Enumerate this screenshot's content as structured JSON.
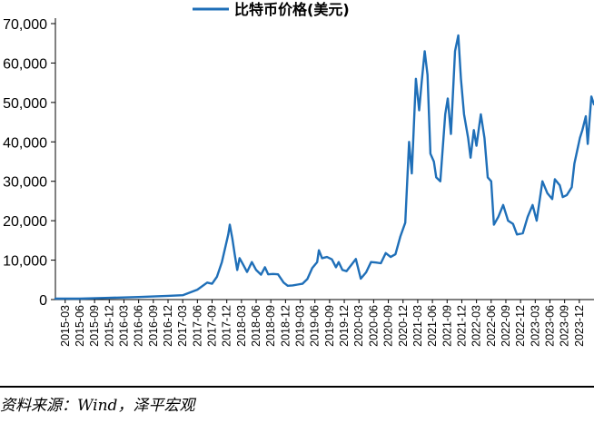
{
  "source_note": "资料来源：Wind，泽平宏观",
  "colors": {
    "series": "#1f6fb8",
    "axis": "#000000",
    "rule": "#000000"
  },
  "chart_data": {
    "type": "line",
    "legend_position": "top",
    "grid": false,
    "ylim": [
      0,
      70000
    ],
    "y_ticks": [
      0,
      10000,
      20000,
      30000,
      40000,
      50000,
      60000,
      70000
    ],
    "y_tick_labels": [
      "0",
      "10,000",
      "20,000",
      "30,000",
      "40,000",
      "50,000",
      "60,000",
      "70,000"
    ],
    "x_ticks": [
      "2015-03",
      "2015-06",
      "2015-09",
      "2015-12",
      "2016-03",
      "2016-06",
      "2016-09",
      "2016-12",
      "2017-03",
      "2017-06",
      "2017-09",
      "2017-12",
      "2018-03",
      "2018-06",
      "2018-09",
      "2018-12",
      "2019-03",
      "2019-06",
      "2019-09",
      "2019-12",
      "2020-03",
      "2020-06",
      "2020-09",
      "2020-12",
      "2021-03",
      "2021-06",
      "2021-09",
      "2021-12",
      "2022-03",
      "2022-06",
      "2022-09",
      "2022-12",
      "2023-03",
      "2023-06",
      "2023-09",
      "2023-12"
    ],
    "x_range": [
      "2015-01",
      "2024-03"
    ],
    "series": [
      {
        "name": "比特币价格(美元)",
        "points": [
          [
            "2015-01",
            250
          ],
          [
            "2015-06",
            240
          ],
          [
            "2015-12",
            430
          ],
          [
            "2016-06",
            650
          ],
          [
            "2016-12",
            950
          ],
          [
            "2017-03",
            1100
          ],
          [
            "2017-06",
            2500
          ],
          [
            "2017-08",
            4300
          ],
          [
            "2017-09",
            4000
          ],
          [
            "2017-10",
            5800
          ],
          [
            "2017-11",
            9500
          ],
          [
            "2017-12-10",
            16500
          ],
          [
            "2017-12-20",
            19000
          ],
          [
            "2018-01-05",
            15500
          ],
          [
            "2018-01-20",
            11500
          ],
          [
            "2018-02-05",
            7500
          ],
          [
            "2018-02-20",
            10500
          ],
          [
            "2018-03-10",
            9000
          ],
          [
            "2018-04-05",
            7000
          ],
          [
            "2018-05-05",
            9500
          ],
          [
            "2018-06-01",
            7500
          ],
          [
            "2018-07-01",
            6300
          ],
          [
            "2018-07-25",
            8200
          ],
          [
            "2018-08-15",
            6400
          ],
          [
            "2018-09-15",
            6500
          ],
          [
            "2018-10-15",
            6400
          ],
          [
            "2018-11-20",
            4300
          ],
          [
            "2018-12-15",
            3500
          ],
          [
            "2019-01-15",
            3600
          ],
          [
            "2019-02-15",
            3800
          ],
          [
            "2019-03-15",
            4000
          ],
          [
            "2019-04-15",
            5200
          ],
          [
            "2019-05-15",
            8000
          ],
          [
            "2019-06-15",
            9500
          ],
          [
            "2019-06-26",
            12500
          ],
          [
            "2019-07-15",
            10500
          ],
          [
            "2019-08-15",
            10800
          ],
          [
            "2019-09-15",
            10200
          ],
          [
            "2019-10-10",
            8200
          ],
          [
            "2019-10-27",
            9500
          ],
          [
            "2019-11-20",
            7500
          ],
          [
            "2019-12-15",
            7200
          ],
          [
            "2020-01-15",
            8800
          ],
          [
            "2020-02-12",
            10300
          ],
          [
            "2020-03-12",
            5300
          ],
          [
            "2020-04-15",
            6900
          ],
          [
            "2020-05-15",
            9500
          ],
          [
            "2020-06-15",
            9400
          ],
          [
            "2020-07-15",
            9200
          ],
          [
            "2020-08-15",
            11800
          ],
          [
            "2020-09-15",
            10800
          ],
          [
            "2020-10-15",
            11500
          ],
          [
            "2020-11-15",
            16000
          ],
          [
            "2020-12-15",
            19500
          ],
          [
            "2021-01-08",
            40000
          ],
          [
            "2021-01-25",
            32000
          ],
          [
            "2021-02-20",
            56000
          ],
          [
            "2021-03-10",
            48000
          ],
          [
            "2021-03-25",
            55000
          ],
          [
            "2021-04-14",
            63000
          ],
          [
            "2021-05-01",
            57000
          ],
          [
            "2021-05-19",
            37000
          ],
          [
            "2021-06-10",
            35000
          ],
          [
            "2021-06-25",
            31000
          ],
          [
            "2021-07-20",
            30000
          ],
          [
            "2021-08-20",
            47000
          ],
          [
            "2021-09-05",
            51000
          ],
          [
            "2021-09-25",
            42000
          ],
          [
            "2021-10-20",
            63000
          ],
          [
            "2021-11-10",
            67000
          ],
          [
            "2021-11-26",
            56000
          ],
          [
            "2021-12-15",
            47000
          ],
          [
            "2022-01-10",
            41000
          ],
          [
            "2022-01-25",
            36000
          ],
          [
            "2022-02-15",
            43000
          ],
          [
            "2022-03-01",
            39000
          ],
          [
            "2022-03-28",
            47000
          ],
          [
            "2022-04-20",
            41000
          ],
          [
            "2022-05-10",
            31000
          ],
          [
            "2022-06-01",
            30000
          ],
          [
            "2022-06-18",
            19000
          ],
          [
            "2022-07-15",
            21000
          ],
          [
            "2022-08-15",
            24000
          ],
          [
            "2022-09-15",
            20000
          ],
          [
            "2022-10-15",
            19200
          ],
          [
            "2022-11-09",
            16500
          ],
          [
            "2022-12-15",
            16800
          ],
          [
            "2023-01-15",
            21000
          ],
          [
            "2023-02-15",
            24000
          ],
          [
            "2023-03-10",
            20000
          ],
          [
            "2023-04-15",
            30000
          ],
          [
            "2023-05-15",
            27000
          ],
          [
            "2023-06-15",
            25500
          ],
          [
            "2023-07-01",
            30500
          ],
          [
            "2023-08-01",
            29000
          ],
          [
            "2023-08-20",
            26000
          ],
          [
            "2023-09-15",
            26500
          ],
          [
            "2023-10-15",
            28500
          ],
          [
            "2023-11-01",
            34500
          ],
          [
            "2023-12-05",
            41000
          ],
          [
            "2023-12-20",
            43000
          ],
          [
            "2024-01-11",
            46500
          ],
          [
            "2024-01-23",
            39500
          ],
          [
            "2024-02-15",
            51500
          ],
          [
            "2024-03-01",
            49500
          ]
        ]
      }
    ]
  }
}
